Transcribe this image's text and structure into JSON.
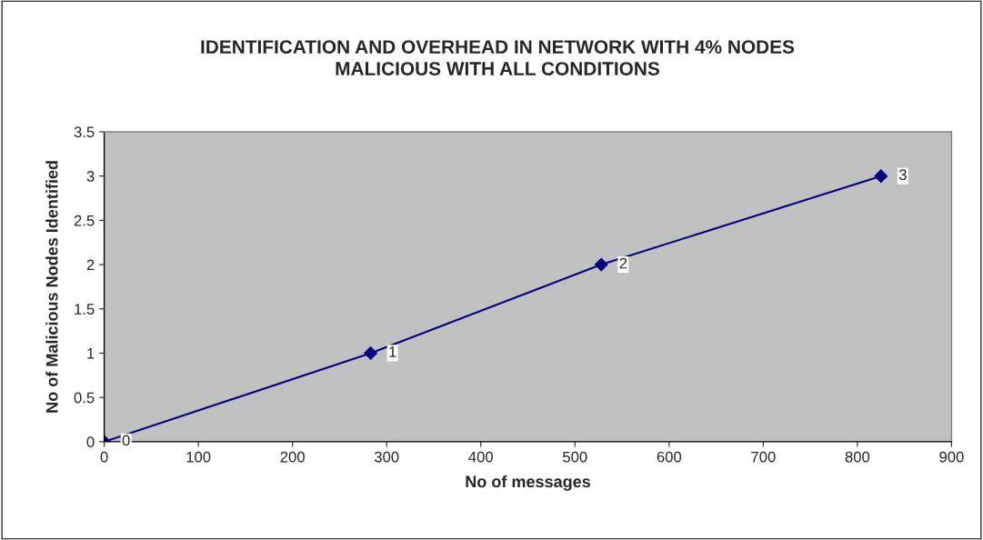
{
  "chart_data": {
    "type": "line",
    "title": "IDENTIFICATION AND OVERHEAD IN NETWORK WITH 4% NODES\nMALICIOUS WITH ALL CONDITIONS",
    "xlabel": "No of messages",
    "ylabel": "No of Malicious Nodes Identified",
    "x": [
      0,
      283,
      528,
      825
    ],
    "series": [
      {
        "color": "#000080",
        "values": [
          0,
          1,
          2,
          3
        ]
      }
    ],
    "xlim": [
      0,
      900
    ],
    "xticks": [
      0,
      100,
      200,
      300,
      400,
      500,
      600,
      700,
      800,
      900
    ],
    "ylim": [
      0,
      3.5
    ],
    "yticks": [
      0,
      0.5,
      1,
      1.5,
      2,
      2.5,
      3,
      3.5
    ],
    "grid": false,
    "marker": "diamond",
    "line_style": "solid",
    "data_labels": true
  }
}
